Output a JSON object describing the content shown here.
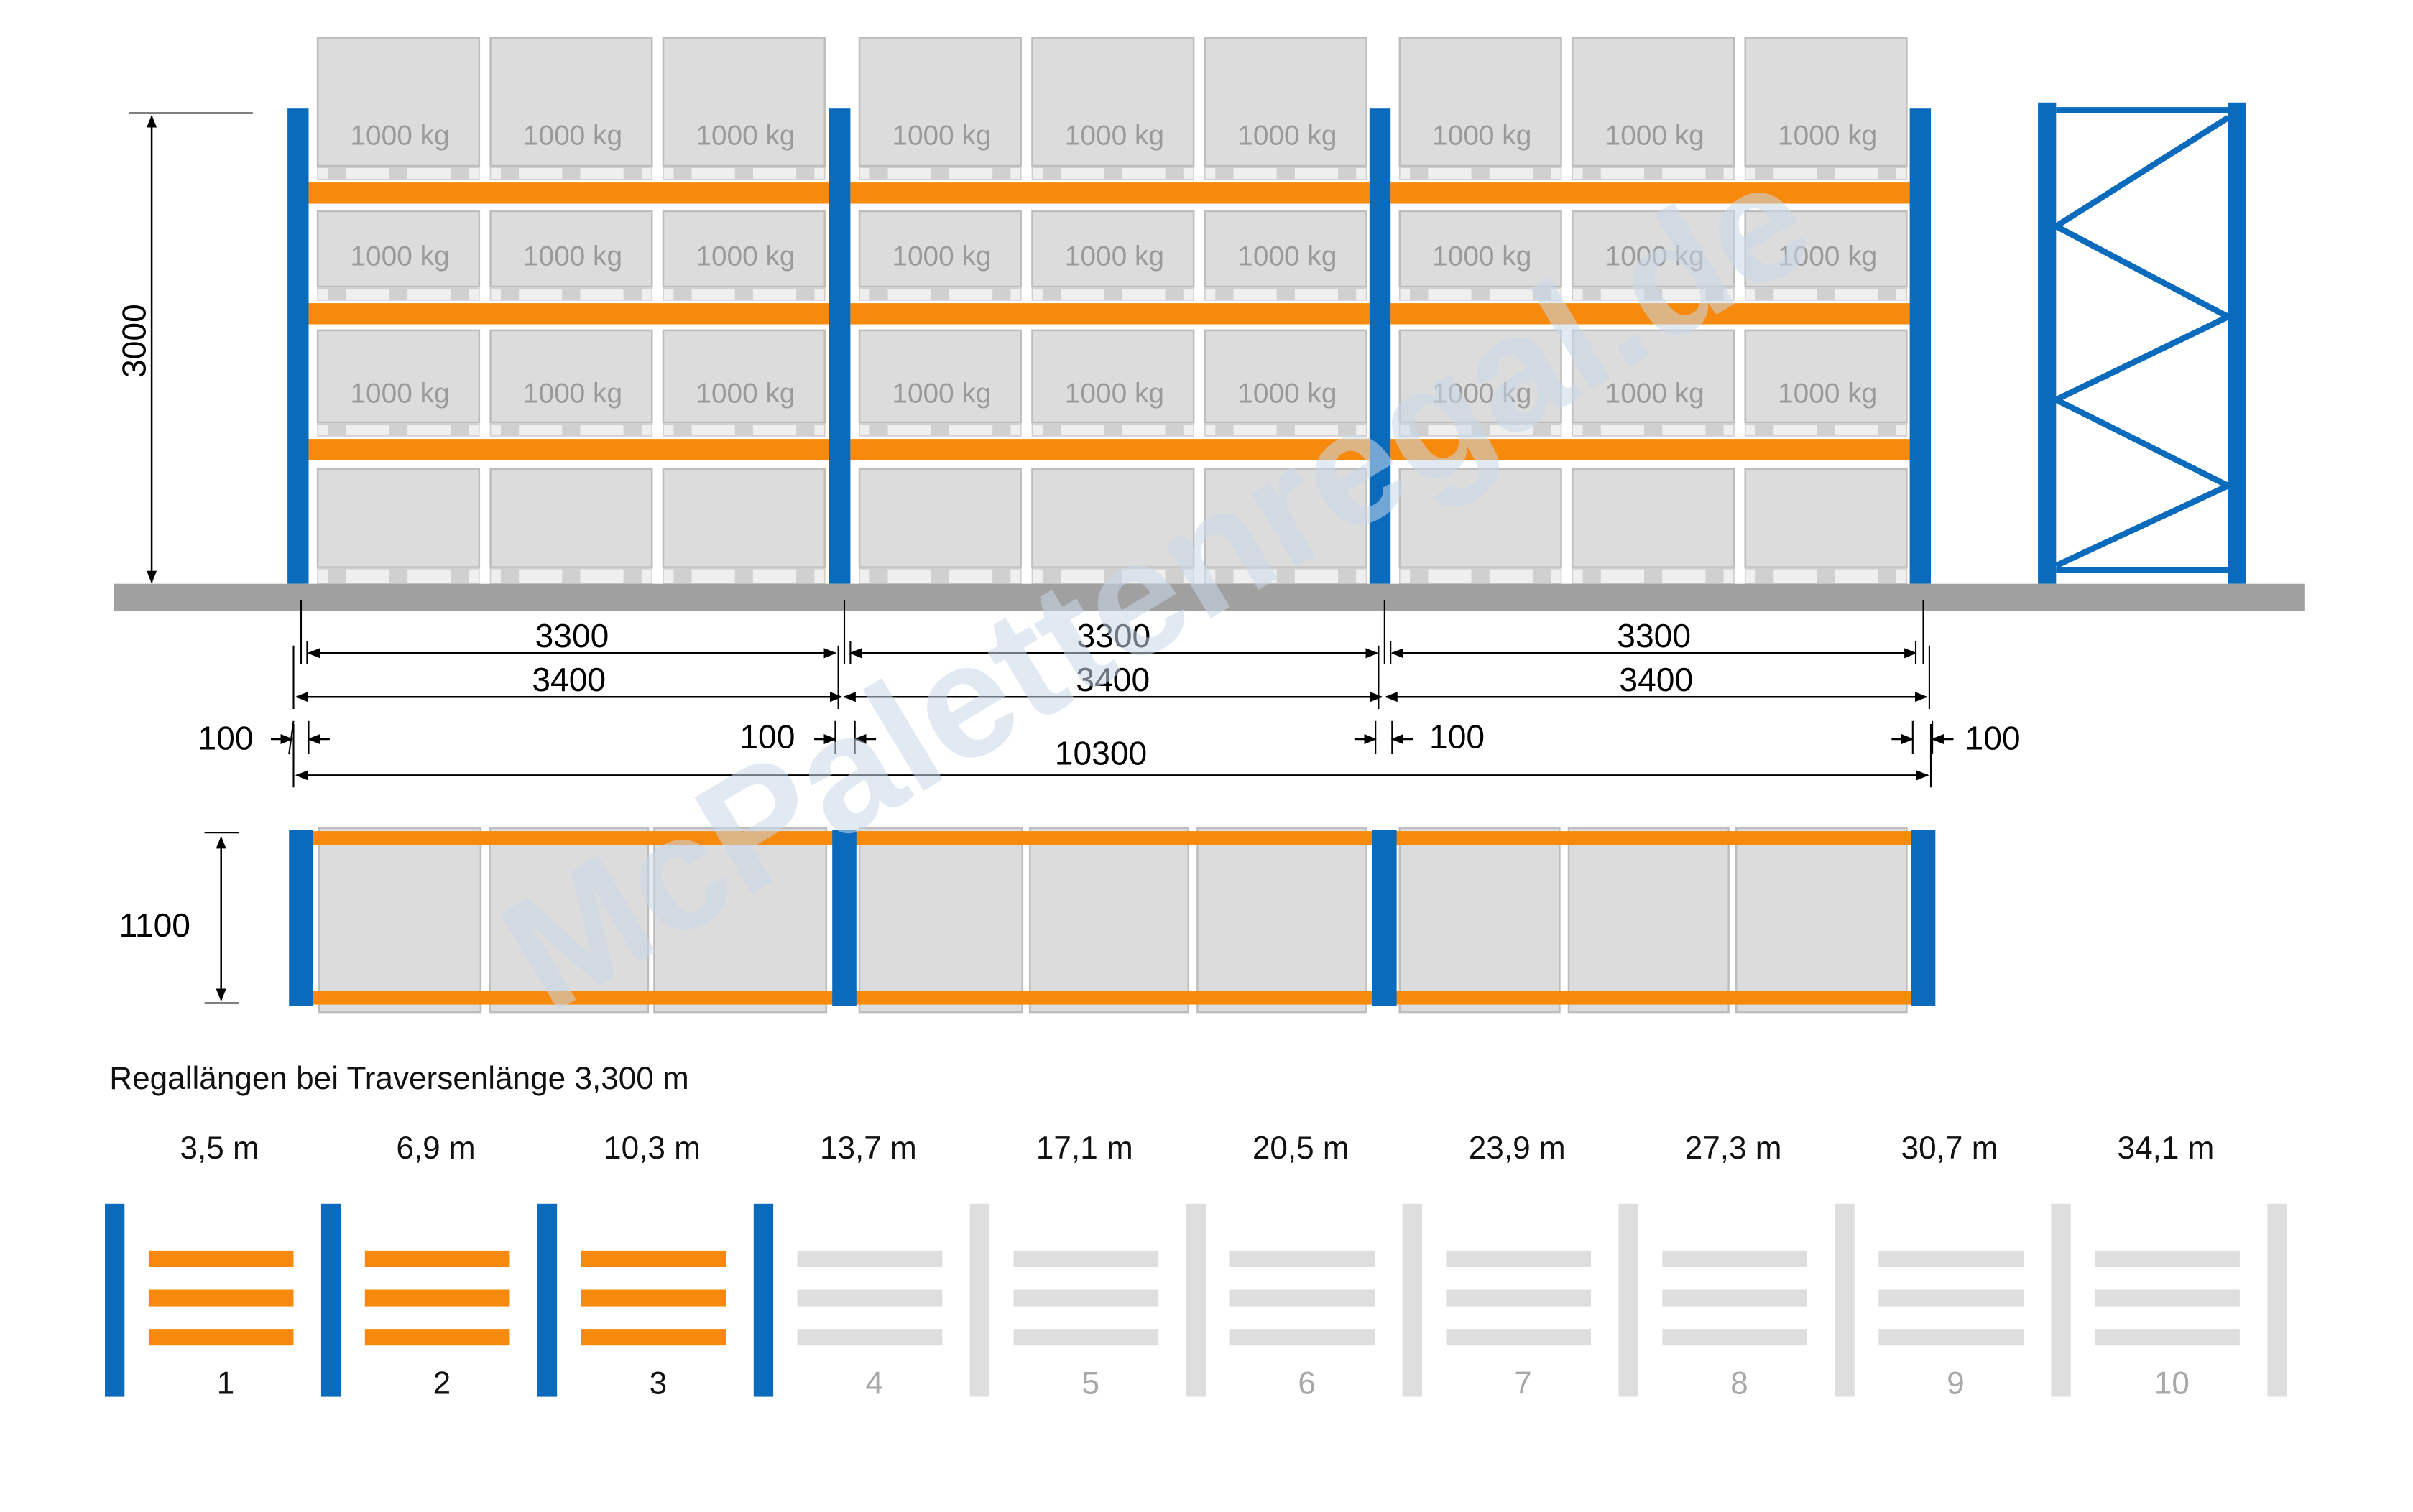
{
  "colors": {
    "upright": "#0a6bbd",
    "beam": "#f78a0c",
    "pallet_fill": "#dcdcdc",
    "pallet_stroke": "#bdbdbd",
    "floor": "#a0a0a0",
    "inactive": "#dedede",
    "inactive_text": "#a8a8a8",
    "watermark": "#c9d8ea"
  },
  "load_label": "1000 kg",
  "watermark": "McPalettenregal.de",
  "dimensions": {
    "height": "3000",
    "depth": "1100",
    "beam_length": "3300",
    "bay_width": "3400",
    "upright_width": "100",
    "total_length": "10300"
  },
  "lengths_title": "Regallängen bei Traversenlänge 3,300 m",
  "lengths": [
    {
      "label": "3,5 m",
      "count": "1",
      "active": true
    },
    {
      "label": "6,9 m",
      "count": "2",
      "active": true
    },
    {
      "label": "10,3 m",
      "count": "3",
      "active": true
    },
    {
      "label": "13,7 m",
      "count": "4",
      "active": false
    },
    {
      "label": "17,1 m",
      "count": "5",
      "active": false
    },
    {
      "label": "20,5 m",
      "count": "6",
      "active": false
    },
    {
      "label": "23,9 m",
      "count": "7",
      "active": false
    },
    {
      "label": "27,3 m",
      "count": "8",
      "active": false
    },
    {
      "label": "30,7 m",
      "count": "9",
      "active": false
    },
    {
      "label": "34,1 m",
      "count": "10",
      "active": false
    }
  ]
}
